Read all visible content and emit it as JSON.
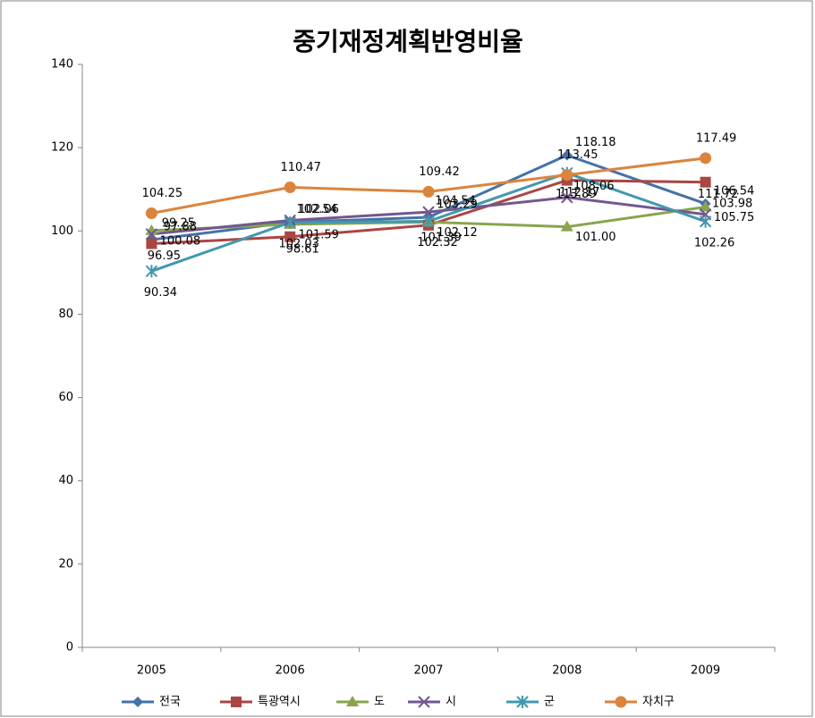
{
  "chart_data": {
    "type": "line",
    "title": "중기재정계획반영비율",
    "categories": [
      "2005",
      "2006",
      "2007",
      "2008",
      "2009"
    ],
    "series": [
      {
        "name": "전국",
        "color": "#4572a7",
        "marker": "diamond",
        "values": [
          97.88,
          102.06,
          103.29,
          118.18,
          106.54
        ]
      },
      {
        "name": "특광역시",
        "color": "#aa4643",
        "marker": "square",
        "values": [
          96.95,
          98.61,
          101.39,
          112.17,
          111.72
        ]
      },
      {
        "name": "도",
        "color": "#89a54e",
        "marker": "triangle",
        "values": [
          100.08,
          101.59,
          102.12,
          101.0,
          105.75
        ]
      },
      {
        "name": "시",
        "color": "#71588f",
        "marker": "x",
        "values": [
          99.25,
          102.54,
          104.54,
          108.06,
          103.98
        ]
      },
      {
        "name": "군",
        "color": "#4198af",
        "marker": "star",
        "values": [
          90.34,
          102.03,
          102.32,
          113.89,
          102.26
        ]
      },
      {
        "name": "자치구",
        "color": "#db843d",
        "marker": "circle",
        "values": [
          104.25,
          110.47,
          109.42,
          113.45,
          117.49
        ]
      }
    ],
    "value_labels": [
      [
        "97.88",
        "102.06",
        "103.29",
        "118.18",
        "106.54"
      ],
      [
        "96.95",
        "98.61",
        "101.39",
        "112.17",
        "111.72"
      ],
      [
        "100.08",
        "101.59",
        "102.12",
        "101.00",
        "105.75"
      ],
      [
        "99.25",
        "102.54",
        "104.54",
        "108.06",
        "103.98"
      ],
      [
        "90.34",
        "102.03",
        "102.32",
        "113.89",
        "102.26"
      ],
      [
        "104.25",
        "110.47",
        "109.42",
        "113.45",
        "117.49"
      ]
    ],
    "ylim": [
      0,
      140
    ],
    "yticks": [
      0,
      20,
      40,
      60,
      80,
      100,
      120,
      140
    ],
    "grid": false,
    "legend": "bottom"
  }
}
